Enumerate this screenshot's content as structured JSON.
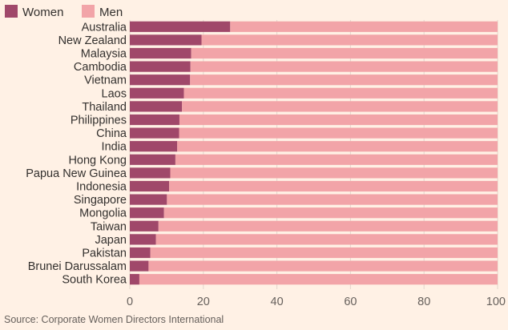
{
  "chart_data": {
    "type": "bar",
    "orientation": "horizontal",
    "stacked": true,
    "categories": [
      "Australia",
      "New Zealand",
      "Malaysia",
      "Cambodia",
      "Vietnam",
      "Laos",
      "Thailand",
      "Philippines",
      "China",
      "India",
      "Hong Kong",
      "Papua New Guinea",
      "Indonesia",
      "Singapore",
      "Mongolia",
      "Taiwan",
      "Japan",
      "Pakistan",
      "Brunei Darussalam",
      "South Korea"
    ],
    "series": [
      {
        "name": "Women",
        "color": "#a0486a",
        "values": [
          27.3,
          19.5,
          16.7,
          16.5,
          16.4,
          14.7,
          14.2,
          13.5,
          13.4,
          12.9,
          12.4,
          11.0,
          10.7,
          10.1,
          9.3,
          7.8,
          7.1,
          5.6,
          5.1,
          2.6
        ]
      },
      {
        "name": "Men",
        "color": "#f2a4a8",
        "values": [
          72.7,
          80.5,
          83.3,
          83.5,
          83.6,
          85.3,
          85.8,
          86.5,
          86.6,
          87.1,
          87.6,
          89.0,
          89.3,
          89.9,
          90.7,
          92.2,
          92.9,
          94.4,
          94.9,
          97.4
        ]
      }
    ],
    "x_ticks": [
      0,
      20,
      40,
      60,
      80,
      100
    ],
    "xlim": [
      0,
      100
    ],
    "grid": true,
    "legend_position": "top-left",
    "source": "Source: Corporate Women Directors International"
  }
}
